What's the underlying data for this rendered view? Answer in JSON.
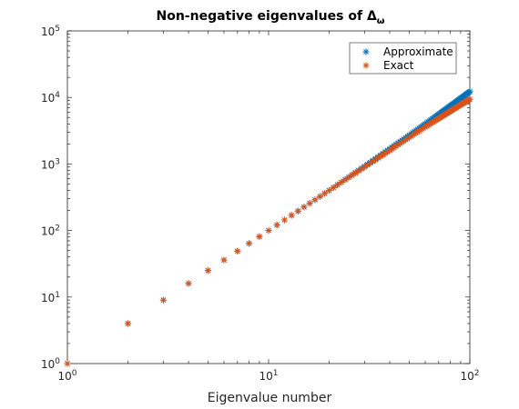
{
  "chart_data": {
    "type": "scatter",
    "title": "Non-negative eigenvalues of ",
    "title_symbol": "Δ",
    "title_subscript": "ω",
    "xlabel": "Eigenvalue number",
    "ylabel": "",
    "xscale": "log",
    "yscale": "log",
    "xlim": [
      1,
      100
    ],
    "ylim": [
      1,
      100000
    ],
    "x_ticks": [
      {
        "base": "10",
        "exp": "0"
      },
      {
        "base": "10",
        "exp": "1"
      },
      {
        "base": "10",
        "exp": "2"
      }
    ],
    "y_ticks": [
      {
        "base": "10",
        "exp": "0"
      },
      {
        "base": "10",
        "exp": "1"
      },
      {
        "base": "10",
        "exp": "2"
      },
      {
        "base": "10",
        "exp": "3"
      },
      {
        "base": "10",
        "exp": "4"
      },
      {
        "base": "10",
        "exp": "5"
      }
    ],
    "grid": false,
    "legend_position": "top-right",
    "marker": "asterisk",
    "series": [
      {
        "name": "Approximate",
        "color": "#0072BD",
        "x_range": [
          1,
          100
        ],
        "model": "approximate"
      },
      {
        "name": "Exact",
        "color": "#D95319",
        "x_range": [
          1,
          100
        ],
        "model": "exact"
      }
    ]
  }
}
